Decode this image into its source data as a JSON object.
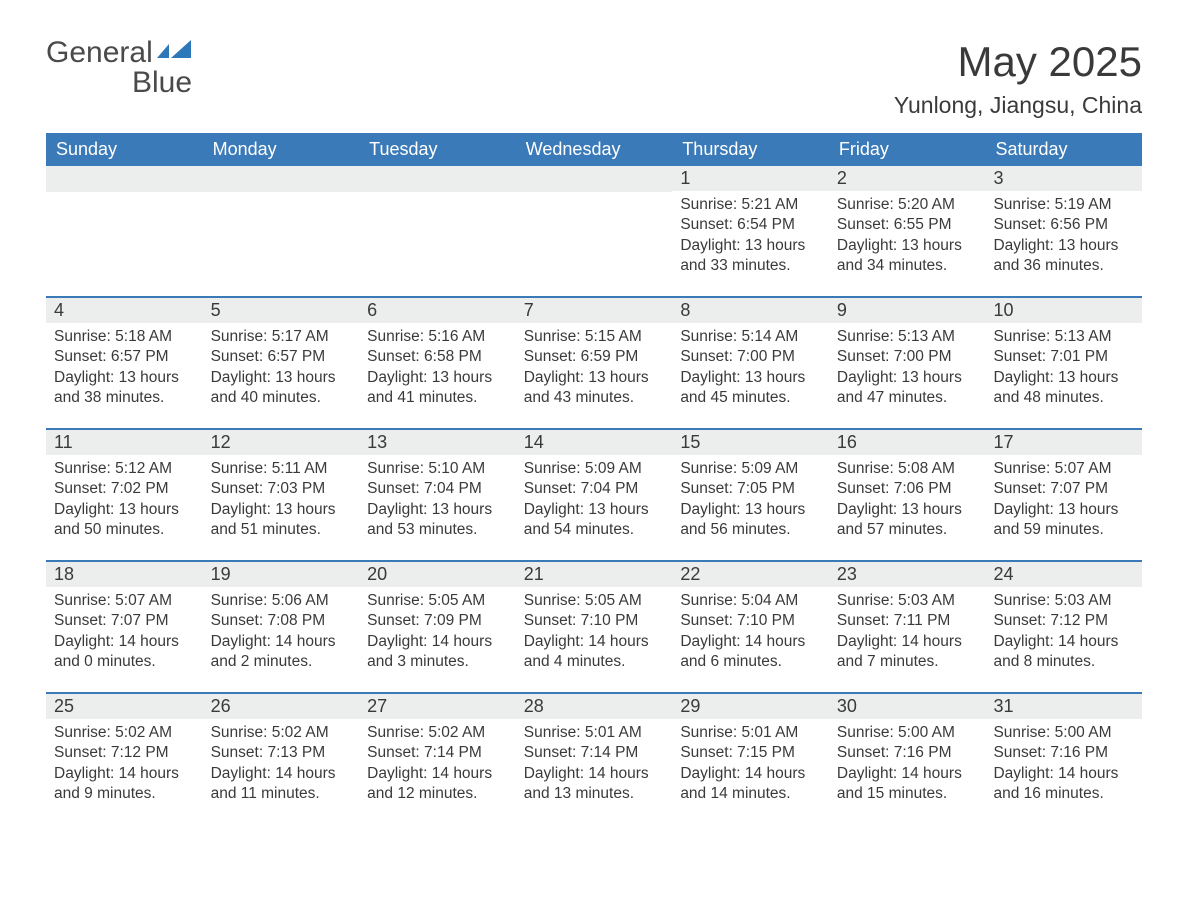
{
  "logo": {
    "word1": "General",
    "word2": "Blue"
  },
  "title": "May 2025",
  "subtitle": "Yunlong, Jiangsu, China",
  "colors": {
    "header_bg": "#3a7ab8",
    "header_text": "#ffffff",
    "daynum_bg": "#eceded",
    "body_text": "#3a3a3a",
    "divider": "#3a7ab8",
    "logo_gray": "#4a4a4a",
    "logo_blue": "#2c78b9",
    "page_bg": "#ffffff"
  },
  "fonts": {
    "title_pt": 42,
    "subtitle_pt": 23,
    "dayhead_pt": 18,
    "daynum_pt": 18,
    "body_pt": 15.5
  },
  "day_headers": [
    "Sunday",
    "Monday",
    "Tuesday",
    "Wednesday",
    "Thursday",
    "Friday",
    "Saturday"
  ],
  "weeks": [
    [
      {
        "empty": true
      },
      {
        "empty": true
      },
      {
        "empty": true
      },
      {
        "empty": true
      },
      {
        "day": "1",
        "sunrise": "Sunrise: 5:21 AM",
        "sunset": "Sunset: 6:54 PM",
        "daylight1": "Daylight: 13 hours",
        "daylight2": "and 33 minutes."
      },
      {
        "day": "2",
        "sunrise": "Sunrise: 5:20 AM",
        "sunset": "Sunset: 6:55 PM",
        "daylight1": "Daylight: 13 hours",
        "daylight2": "and 34 minutes."
      },
      {
        "day": "3",
        "sunrise": "Sunrise: 5:19 AM",
        "sunset": "Sunset: 6:56 PM",
        "daylight1": "Daylight: 13 hours",
        "daylight2": "and 36 minutes."
      }
    ],
    [
      {
        "day": "4",
        "sunrise": "Sunrise: 5:18 AM",
        "sunset": "Sunset: 6:57 PM",
        "daylight1": "Daylight: 13 hours",
        "daylight2": "and 38 minutes."
      },
      {
        "day": "5",
        "sunrise": "Sunrise: 5:17 AM",
        "sunset": "Sunset: 6:57 PM",
        "daylight1": "Daylight: 13 hours",
        "daylight2": "and 40 minutes."
      },
      {
        "day": "6",
        "sunrise": "Sunrise: 5:16 AM",
        "sunset": "Sunset: 6:58 PM",
        "daylight1": "Daylight: 13 hours",
        "daylight2": "and 41 minutes."
      },
      {
        "day": "7",
        "sunrise": "Sunrise: 5:15 AM",
        "sunset": "Sunset: 6:59 PM",
        "daylight1": "Daylight: 13 hours",
        "daylight2": "and 43 minutes."
      },
      {
        "day": "8",
        "sunrise": "Sunrise: 5:14 AM",
        "sunset": "Sunset: 7:00 PM",
        "daylight1": "Daylight: 13 hours",
        "daylight2": "and 45 minutes."
      },
      {
        "day": "9",
        "sunrise": "Sunrise: 5:13 AM",
        "sunset": "Sunset: 7:00 PM",
        "daylight1": "Daylight: 13 hours",
        "daylight2": "and 47 minutes."
      },
      {
        "day": "10",
        "sunrise": "Sunrise: 5:13 AM",
        "sunset": "Sunset: 7:01 PM",
        "daylight1": "Daylight: 13 hours",
        "daylight2": "and 48 minutes."
      }
    ],
    [
      {
        "day": "11",
        "sunrise": "Sunrise: 5:12 AM",
        "sunset": "Sunset: 7:02 PM",
        "daylight1": "Daylight: 13 hours",
        "daylight2": "and 50 minutes."
      },
      {
        "day": "12",
        "sunrise": "Sunrise: 5:11 AM",
        "sunset": "Sunset: 7:03 PM",
        "daylight1": "Daylight: 13 hours",
        "daylight2": "and 51 minutes."
      },
      {
        "day": "13",
        "sunrise": "Sunrise: 5:10 AM",
        "sunset": "Sunset: 7:04 PM",
        "daylight1": "Daylight: 13 hours",
        "daylight2": "and 53 minutes."
      },
      {
        "day": "14",
        "sunrise": "Sunrise: 5:09 AM",
        "sunset": "Sunset: 7:04 PM",
        "daylight1": "Daylight: 13 hours",
        "daylight2": "and 54 minutes."
      },
      {
        "day": "15",
        "sunrise": "Sunrise: 5:09 AM",
        "sunset": "Sunset: 7:05 PM",
        "daylight1": "Daylight: 13 hours",
        "daylight2": "and 56 minutes."
      },
      {
        "day": "16",
        "sunrise": "Sunrise: 5:08 AM",
        "sunset": "Sunset: 7:06 PM",
        "daylight1": "Daylight: 13 hours",
        "daylight2": "and 57 minutes."
      },
      {
        "day": "17",
        "sunrise": "Sunrise: 5:07 AM",
        "sunset": "Sunset: 7:07 PM",
        "daylight1": "Daylight: 13 hours",
        "daylight2": "and 59 minutes."
      }
    ],
    [
      {
        "day": "18",
        "sunrise": "Sunrise: 5:07 AM",
        "sunset": "Sunset: 7:07 PM",
        "daylight1": "Daylight: 14 hours",
        "daylight2": "and 0 minutes."
      },
      {
        "day": "19",
        "sunrise": "Sunrise: 5:06 AM",
        "sunset": "Sunset: 7:08 PM",
        "daylight1": "Daylight: 14 hours",
        "daylight2": "and 2 minutes."
      },
      {
        "day": "20",
        "sunrise": "Sunrise: 5:05 AM",
        "sunset": "Sunset: 7:09 PM",
        "daylight1": "Daylight: 14 hours",
        "daylight2": "and 3 minutes."
      },
      {
        "day": "21",
        "sunrise": "Sunrise: 5:05 AM",
        "sunset": "Sunset: 7:10 PM",
        "daylight1": "Daylight: 14 hours",
        "daylight2": "and 4 minutes."
      },
      {
        "day": "22",
        "sunrise": "Sunrise: 5:04 AM",
        "sunset": "Sunset: 7:10 PM",
        "daylight1": "Daylight: 14 hours",
        "daylight2": "and 6 minutes."
      },
      {
        "day": "23",
        "sunrise": "Sunrise: 5:03 AM",
        "sunset": "Sunset: 7:11 PM",
        "daylight1": "Daylight: 14 hours",
        "daylight2": "and 7 minutes."
      },
      {
        "day": "24",
        "sunrise": "Sunrise: 5:03 AM",
        "sunset": "Sunset: 7:12 PM",
        "daylight1": "Daylight: 14 hours",
        "daylight2": "and 8 minutes."
      }
    ],
    [
      {
        "day": "25",
        "sunrise": "Sunrise: 5:02 AM",
        "sunset": "Sunset: 7:12 PM",
        "daylight1": "Daylight: 14 hours",
        "daylight2": "and 9 minutes."
      },
      {
        "day": "26",
        "sunrise": "Sunrise: 5:02 AM",
        "sunset": "Sunset: 7:13 PM",
        "daylight1": "Daylight: 14 hours",
        "daylight2": "and 11 minutes."
      },
      {
        "day": "27",
        "sunrise": "Sunrise: 5:02 AM",
        "sunset": "Sunset: 7:14 PM",
        "daylight1": "Daylight: 14 hours",
        "daylight2": "and 12 minutes."
      },
      {
        "day": "28",
        "sunrise": "Sunrise: 5:01 AM",
        "sunset": "Sunset: 7:14 PM",
        "daylight1": "Daylight: 14 hours",
        "daylight2": "and 13 minutes."
      },
      {
        "day": "29",
        "sunrise": "Sunrise: 5:01 AM",
        "sunset": "Sunset: 7:15 PM",
        "daylight1": "Daylight: 14 hours",
        "daylight2": "and 14 minutes."
      },
      {
        "day": "30",
        "sunrise": "Sunrise: 5:00 AM",
        "sunset": "Sunset: 7:16 PM",
        "daylight1": "Daylight: 14 hours",
        "daylight2": "and 15 minutes."
      },
      {
        "day": "31",
        "sunrise": "Sunrise: 5:00 AM",
        "sunset": "Sunset: 7:16 PM",
        "daylight1": "Daylight: 14 hours",
        "daylight2": "and 16 minutes."
      }
    ]
  ]
}
